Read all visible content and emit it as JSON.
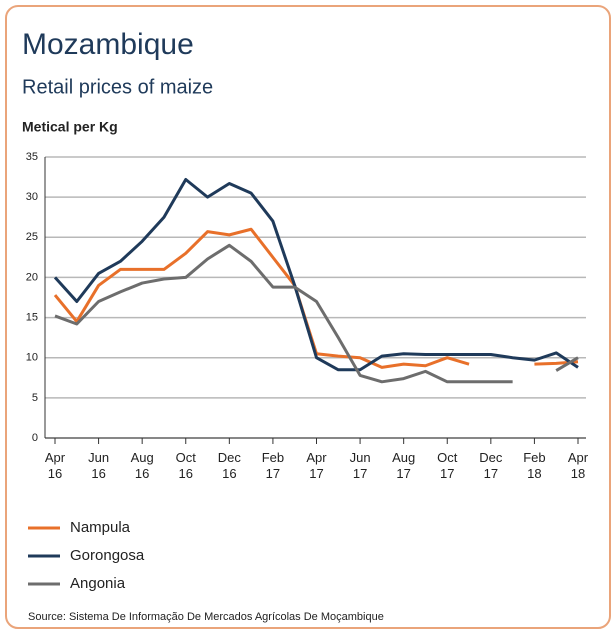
{
  "chart_data": {
    "type": "line",
    "title": "Mozambique",
    "subtitle": "Retail prices of maize",
    "ylabel": "Metical per Kg",
    "source": "Source: Sistema De Informação De Mercados Agrícolas De Moçambique",
    "categories": [
      "Apr 16",
      null,
      "Jun 16",
      null,
      "Aug 16",
      null,
      "Oct 16",
      null,
      "Dec 16",
      null,
      "Feb 17",
      null,
      "Apr 17",
      null,
      "Jun 17",
      null,
      "Aug 17",
      null,
      "Oct 17",
      null,
      "Dec 17",
      null,
      "Feb 18",
      null,
      "Apr 18"
    ],
    "ylim": [
      0,
      35
    ],
    "yticks": [
      0,
      5,
      10,
      15,
      20,
      25,
      30,
      35
    ],
    "grid": true,
    "legend": "bottom",
    "series": [
      {
        "name": "Nampula",
        "color": "#e8702a",
        "values": [
          17.8,
          14.5,
          19,
          21,
          21,
          21,
          23,
          25.7,
          25.3,
          26,
          22.5,
          19,
          10.5,
          10.2,
          10,
          8.8,
          9.2,
          9,
          10,
          9.2,
          null,
          null,
          9.2,
          9.3,
          9.5
        ]
      },
      {
        "name": "Gorongosa",
        "color": "#1f3a5a",
        "values": [
          20,
          17,
          20.5,
          22,
          24.5,
          27.5,
          32.2,
          30,
          31.7,
          30.5,
          27,
          19,
          10,
          8.5,
          8.5,
          10.2,
          10.5,
          10.4,
          10.4,
          10.4,
          10.4,
          10,
          9.7,
          10.6,
          8.8
        ]
      },
      {
        "name": "Angonia",
        "color": "#6d6d6d",
        "values": [
          15.2,
          14.2,
          17,
          18.2,
          19.3,
          19.8,
          20,
          22.3,
          24,
          22,
          18.8,
          18.8,
          17,
          12.5,
          7.8,
          7,
          7.4,
          8.3,
          7,
          7,
          7,
          7,
          null,
          8.4,
          10
        ]
      }
    ]
  }
}
